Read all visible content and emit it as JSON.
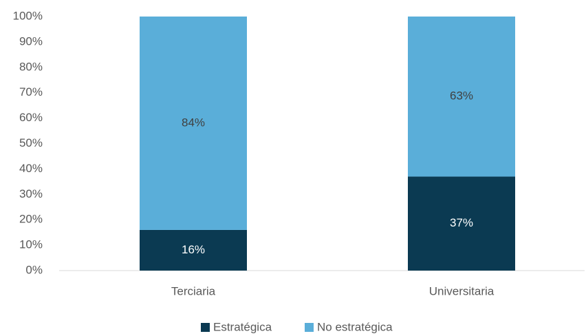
{
  "chart_data": {
    "type": "stacked-bar",
    "categories": [
      "Terciaria",
      "Universitaria"
    ],
    "series": [
      {
        "name": "Estratégica",
        "color": "#0b3a52",
        "values": [
          16,
          37
        ],
        "value_labels": [
          "16%",
          "37%"
        ],
        "label_color": "#ffffff"
      },
      {
        "name": "No estratégica",
        "color": "#5aaed9",
        "values": [
          84,
          63
        ],
        "value_labels": [
          "84%",
          "63%"
        ],
        "label_color": "#404040"
      }
    ],
    "ylim": [
      0,
      100
    ],
    "yticks": [
      {
        "value": 0,
        "label": "0%"
      },
      {
        "value": 10,
        "label": "10%"
      },
      {
        "value": 20,
        "label": "20%"
      },
      {
        "value": 30,
        "label": "30%"
      },
      {
        "value": 40,
        "label": "40%"
      },
      {
        "value": 50,
        "label": "50%"
      },
      {
        "value": 60,
        "label": "60%"
      },
      {
        "value": 70,
        "label": "70%"
      },
      {
        "value": 80,
        "label": "80%"
      },
      {
        "value": 90,
        "label": "90%"
      },
      {
        "value": 100,
        "label": "100%"
      }
    ],
    "grid": false,
    "legend": "bottom"
  }
}
